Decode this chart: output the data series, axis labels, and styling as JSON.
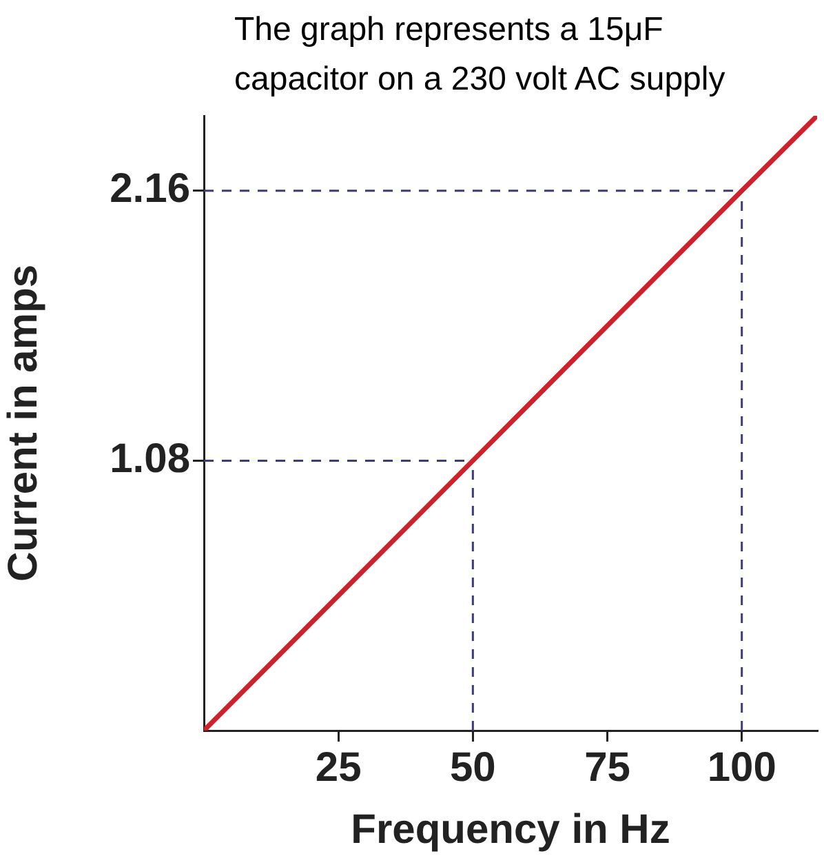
{
  "chart_data": {
    "type": "line",
    "title": "The graph represents a 15μF capacitor on a 230 volt AC supply",
    "xlabel": "Frequency in Hz",
    "ylabel": "Current in amps",
    "x": [
      0,
      50,
      100,
      114
    ],
    "series": [
      {
        "color": "#d0202a",
        "values": [
          0,
          1.08,
          2.16,
          2.46
        ]
      }
    ],
    "xlim": [
      0,
      114
    ],
    "xticks": [
      25,
      50,
      75,
      100
    ],
    "ylim": [
      0,
      2.46
    ],
    "yticks": [
      1.08,
      2.16
    ],
    "ref_lines": [
      {
        "axis": "y",
        "value": 1.08,
        "color": "#3c3c78",
        "line_style": "dashed"
      },
      {
        "axis": "y",
        "value": 2.16,
        "color": "#3c3c78",
        "line_style": "dashed"
      },
      {
        "axis": "x",
        "value": 50,
        "color": "#3c3c78",
        "line_style": "dashed"
      },
      {
        "axis": "x",
        "value": 100,
        "color": "#3c3c78",
        "line_style": "dashed"
      }
    ],
    "grid": false,
    "legend": false,
    "marker": "none",
    "line_style": "solid"
  }
}
